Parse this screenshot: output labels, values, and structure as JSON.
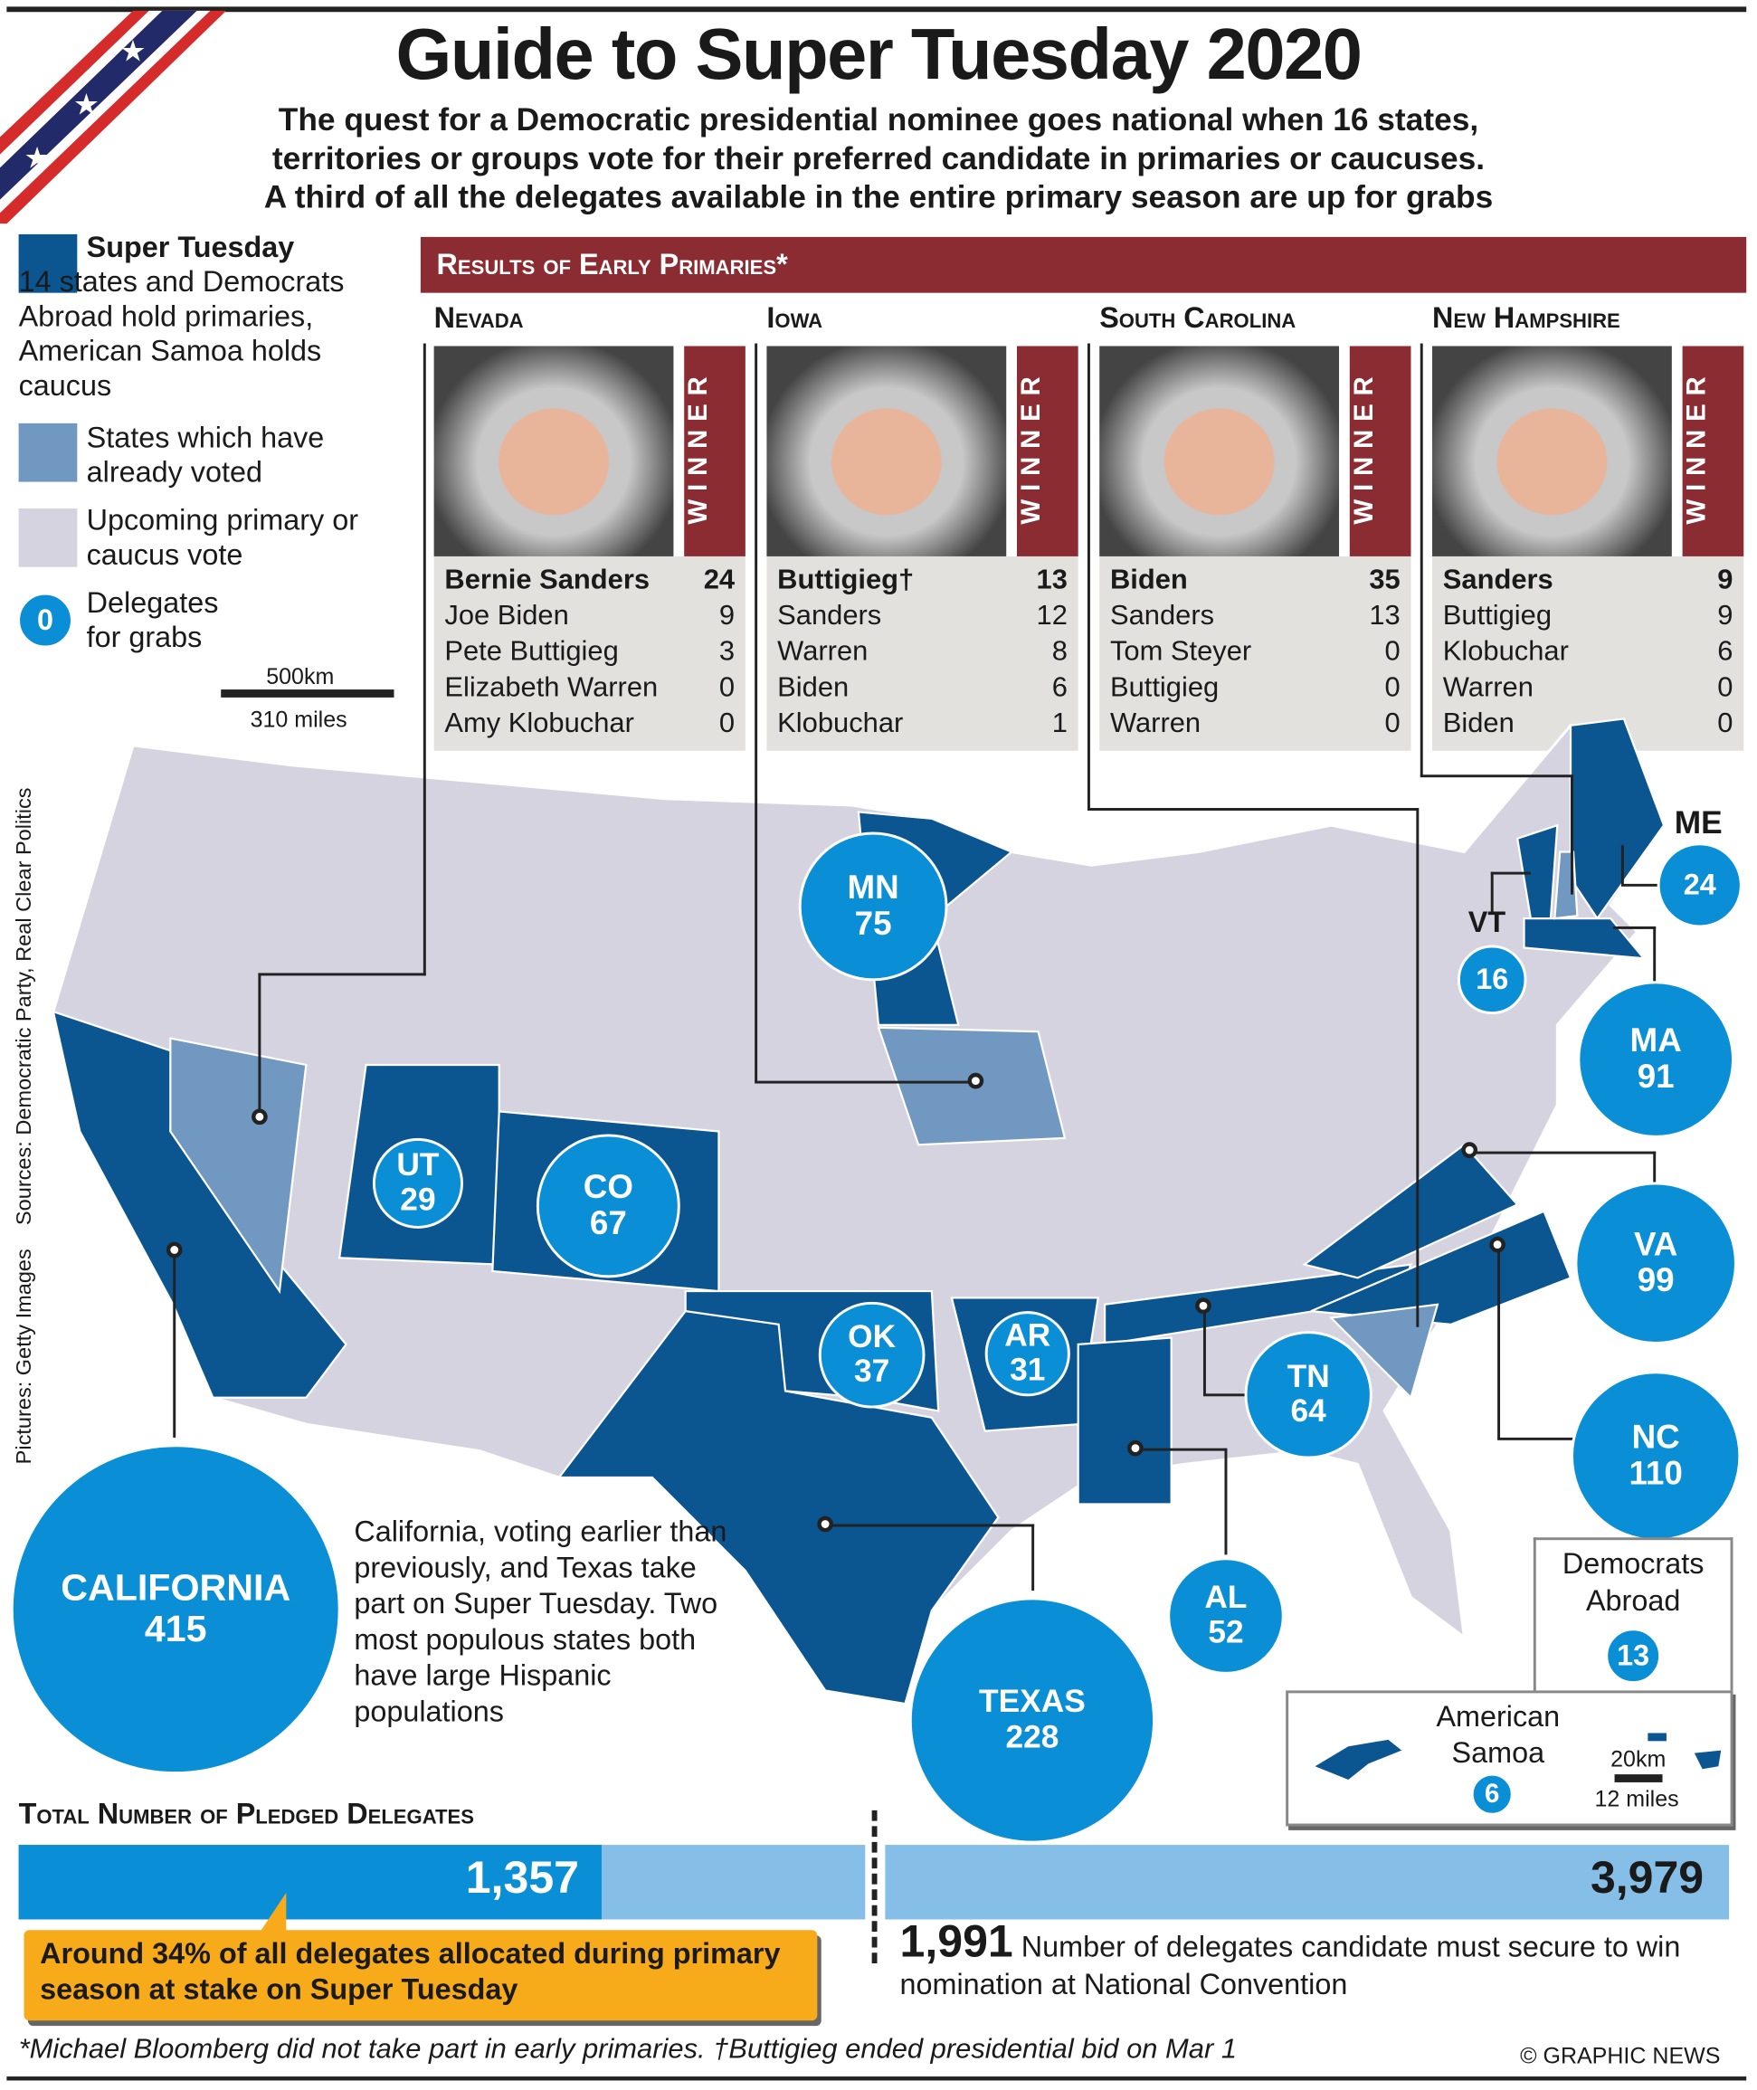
{
  "title": "Guide to Super Tuesday 2020",
  "subtitle": [
    "The quest for a Democratic presidential nominee goes national when 16 states,",
    "territories or groups vote for their preferred candidate in primaries or caucuses.",
    "A third of all the delegates available in the entire primary season are up for grabs"
  ],
  "legend": {
    "super_tuesday_title": "Super Tuesday",
    "super_tuesday_text": "14 states and Democrats Abroad hold primaries, American Samoa holds caucus",
    "voted": "States which have already voted",
    "upcoming": "Upcoming primary or caucus vote",
    "delegates_sample": "0",
    "delegates": "Delegates for grabs",
    "scale_km": "500km",
    "scale_mi": "310 miles"
  },
  "colors": {
    "super_tuesday": "#0b5591",
    "voted": "#7098c0",
    "upcoming": "#d6d3e0",
    "bubble": "#0a8fd6",
    "banner": "#8b2c33",
    "callout": "#f7ab1b"
  },
  "credits": "Pictures: Getty Images    Sources: Democratic Party, Real Clear Politics",
  "results": {
    "banner": "Results of Early Primaries*",
    "winner_label": "WINNER",
    "states": [
      {
        "name": "Nevada",
        "rows": [
          [
            "Bernie Sanders",
            "24"
          ],
          [
            "Joe Biden",
            "9"
          ],
          [
            "Pete Buttigieg",
            "3"
          ],
          [
            "Elizabeth Warren",
            "0"
          ],
          [
            "Amy Klobuchar",
            "0"
          ]
        ]
      },
      {
        "name": "Iowa",
        "rows": [
          [
            "Buttigieg†",
            "13"
          ],
          [
            "Sanders",
            "12"
          ],
          [
            "Warren",
            "8"
          ],
          [
            "Biden",
            "6"
          ],
          [
            "Klobuchar",
            "1"
          ]
        ]
      },
      {
        "name": "South Carolina",
        "rows": [
          [
            "Biden",
            "35"
          ],
          [
            "Sanders",
            "13"
          ],
          [
            "Tom Steyer",
            "0"
          ],
          [
            "Buttigieg",
            "0"
          ],
          [
            "Warren",
            "0"
          ]
        ]
      },
      {
        "name": "New Hampshire",
        "rows": [
          [
            "Sanders",
            "9"
          ],
          [
            "Buttigieg",
            "9"
          ],
          [
            "Klobuchar",
            "6"
          ],
          [
            "Warren",
            "0"
          ],
          [
            "Biden",
            "0"
          ]
        ]
      }
    ]
  },
  "bubbles": {
    "CA": [
      "CALIFORNIA",
      "415"
    ],
    "TX": [
      "TEXAS",
      "228"
    ],
    "UT": [
      "UT",
      "29"
    ],
    "CO": [
      "CO",
      "67"
    ],
    "MN": [
      "MN",
      "75"
    ],
    "OK": [
      "OK",
      "37"
    ],
    "AR": [
      "AR",
      "31"
    ],
    "TN": [
      "TN",
      "64"
    ],
    "AL": [
      "AL",
      "52"
    ],
    "VA": [
      "VA",
      "99"
    ],
    "NC": [
      "NC",
      "110"
    ],
    "MA": [
      "MA",
      "91"
    ],
    "VT": [
      "VT",
      "16"
    ],
    "ME": [
      "ME",
      "24"
    ]
  },
  "ca_tx_note": "California, voting earlier than previously, and Texas take part on Super Tuesday. Two most populous states both have large Hispanic populations",
  "abroad": {
    "label": "Democrats Abroad",
    "value": "13"
  },
  "samoa": {
    "label": "American Samoa",
    "value": "6",
    "scale_km": "20km",
    "scale_mi": "12 miles"
  },
  "totals": {
    "heading": "Total Number of Pledged Delegates",
    "super_tuesday": "1,357",
    "total": "3,979",
    "super_tuesday_value": 1357,
    "total_value": 3979,
    "callout": "Around 34% of all delegates allocated during primary season at stake on Super Tuesday",
    "needed": "1,991",
    "needed_text": "Number of delegates candidate must secure to win nomination at National Convention"
  },
  "footnote": "*Michael Bloomberg did not take part in early primaries. †Buttigieg ended presidential bid on Mar 1",
  "copyright": "© GRAPHIC NEWS"
}
